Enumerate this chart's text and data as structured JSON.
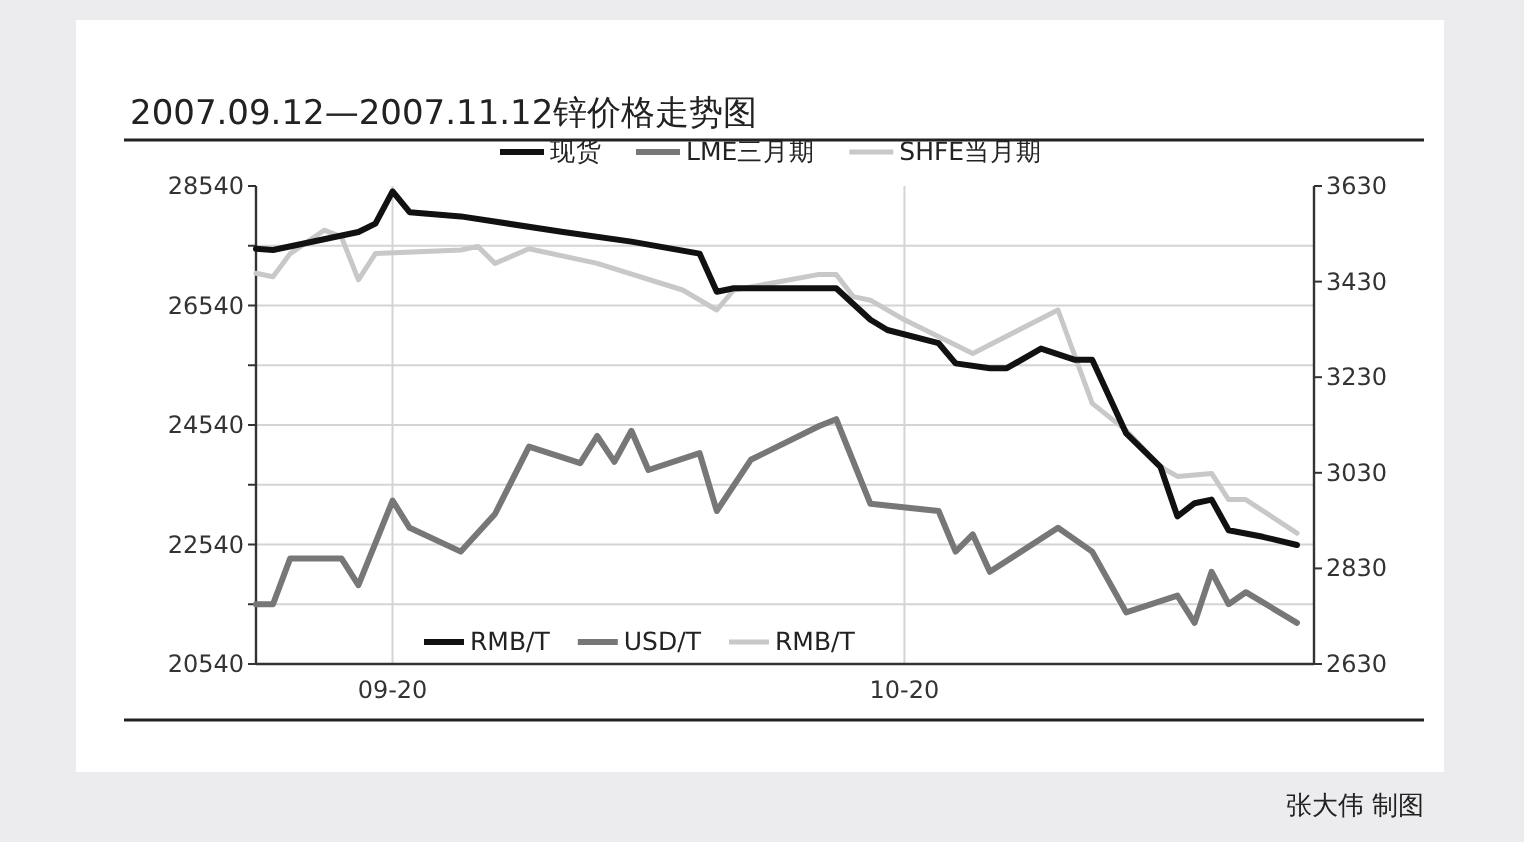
{
  "chart_data": {
    "type": "line",
    "title": "2007.09.12—2007.11.12锌价格走势图",
    "series": [
      {
        "name": "现货",
        "color": "#111111",
        "x": [
          "--09-12",
          "--09-13",
          "--09-18",
          "--09-19",
          "--09-20",
          "--09-21",
          "--09-24",
          "--09-30",
          "--10-04",
          "--10-08",
          "--10-09",
          "--10-10",
          "--10-15",
          "--10-16",
          "--10-18",
          "--10-19",
          "--10-22",
          "--10-23",
          "--10-25",
          "--10-26",
          "--10-28",
          "--10-30",
          "--10-31",
          "--11-02",
          "--11-04",
          "--11-05",
          "--11-06",
          "--11-07",
          "--11-08",
          "--11-10",
          "--11-12"
        ],
        "values": [
          27490,
          27470,
          27770,
          27910,
          28450,
          28100,
          28030,
          27770,
          27610,
          27410,
          26770,
          26830,
          26830,
          26830,
          26300,
          26130,
          25910,
          25570,
          25490,
          25490,
          25820,
          25630,
          25630,
          24400,
          23840,
          23010,
          23230,
          23290,
          22780,
          22670,
          22530
        ]
      },
      {
        "name": "LME三月期",
        "color": "#777777",
        "axis": "y2",
        "x": [
          "--09-12",
          "--09-13",
          "--09-14",
          "--09-17",
          "--09-18",
          "--09-20",
          "--09-21",
          "--09-24",
          "--09-26",
          "--09-28",
          "--10-01",
          "--10-02",
          "--10-03",
          "--10-04",
          "--10-05",
          "--10-08",
          "--10-09",
          "--10-11",
          "--10-15",
          "--10-16",
          "--10-18",
          "--10-22",
          "--10-23",
          "--10-24",
          "--10-25",
          "--10-29",
          "--10-31",
          "--11-02",
          "--11-05",
          "--11-06",
          "--11-07",
          "--11-08",
          "--11-09",
          "--11-12"
        ],
        "values": [
          2755,
          2755,
          2851,
          2851,
          2795,
          2972,
          2915,
          2865,
          2944,
          3085,
          3050,
          3107,
          3053,
          3118,
          3036,
          3071,
          2950,
          3057,
          3128,
          3142,
          2965,
          2950,
          2865,
          2901,
          2823,
          2915,
          2865,
          2738,
          2773,
          2716,
          2823,
          2755,
          2780,
          2716
        ]
      },
      {
        "name": "SHFE当月期",
        "color": "#c8c8c8",
        "x": [
          "--09-12",
          "--09-13",
          "--09-14",
          "--09-16",
          "--09-17",
          "--09-18",
          "--09-19",
          "--09-24",
          "--09-25",
          "--09-26",
          "--09-28",
          "--10-02",
          "--10-07",
          "--10-09",
          "--10-10",
          "--10-15",
          "--10-16",
          "--10-17",
          "--10-18",
          "--10-20",
          "--10-24",
          "--10-29",
          "--10-31",
          "--11-02",
          "--11-04",
          "--11-05",
          "--11-07",
          "--11-08",
          "--11-09",
          "--11-12"
        ],
        "values": [
          27080,
          27020,
          27410,
          27800,
          27690,
          26970,
          27410,
          27470,
          27530,
          27245,
          27490,
          27245,
          26800,
          26465,
          26800,
          27060,
          27060,
          26690,
          26630,
          26300,
          25740,
          26465,
          24900,
          24450,
          23840,
          23680,
          23730,
          23290,
          23290,
          22730
        ]
      }
    ],
    "xlim": [
      "--09-12",
      "--11-13"
    ],
    "xticks": [
      {
        "value": "--09-20",
        "label": "09-20"
      },
      {
        "value": "--10-20",
        "label": "10-20"
      }
    ],
    "ylim": [
      20540,
      28540
    ],
    "yticks": [
      20540,
      {
        "value": 21540,
        "label": null
      },
      22540,
      {
        "value": 23540,
        "label": null
      },
      24540,
      {
        "value": 25540,
        "label": null
      },
      26540,
      {
        "value": 27540,
        "label": null
      },
      28540
    ],
    "y2lim": [
      2630,
      3630
    ],
    "y2ticks": [
      2630,
      2830,
      3030,
      3230,
      3430,
      3630
    ],
    "grid": true,
    "legend": "top",
    "annotations": [
      "RMB/T",
      "USD/T",
      "RMB/T",
      "张大伟 制图"
    ]
  }
}
